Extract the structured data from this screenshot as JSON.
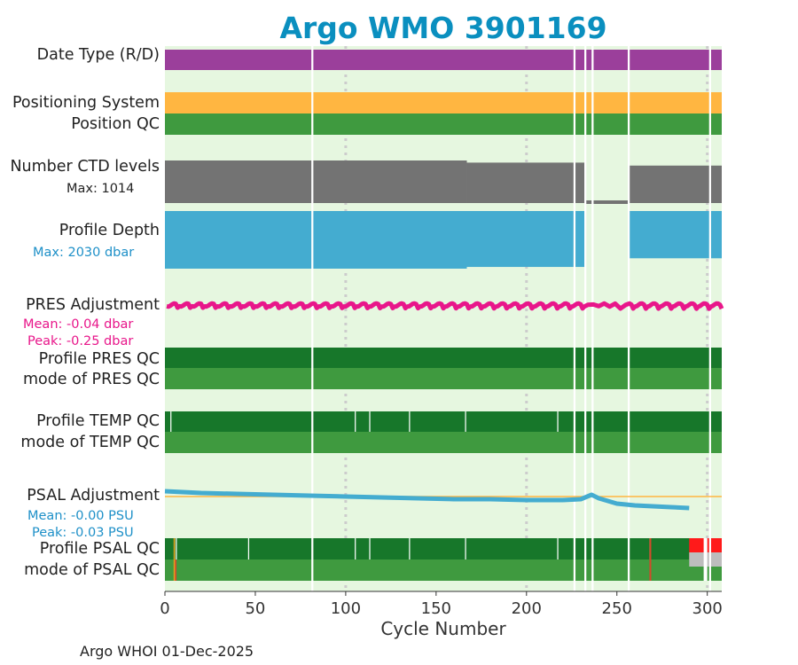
{
  "title": "Argo WMO 3901169",
  "footer": "Argo WHOI 01-Dec-2025",
  "rows": {
    "date_type": "Date Type (R/D)",
    "positioning_system": "Positioning System",
    "position_qc": "Position QC",
    "ctd_levels": "Number CTD levels",
    "ctd_max": "Max: 1014",
    "profile_depth": "Profile Depth",
    "depth_max": "Max: 2030 dbar",
    "pres_adjustment": "PRES Adjustment",
    "pres_mean": "Mean: -0.04 dbar",
    "pres_peak": "Peak: -0.25 dbar",
    "profile_pres_qc": "Profile PRES QC",
    "mode_pres_qc": "mode of PRES QC",
    "profile_temp_qc": "Profile TEMP QC",
    "mode_temp_qc": "mode of TEMP QC",
    "psal_adjustment": "PSAL Adjustment",
    "psal_mean": "Mean: -0.00 PSU",
    "psal_peak": "Peak: -0.03 PSU",
    "profile_psal_qc": "Profile PSAL QC",
    "mode_psal_qc": "mode of PSAL QC"
  },
  "colors": {
    "title": "#0a8fbf",
    "panel_bg": "#e6f7e0",
    "date_type": "#9b3f9b",
    "positioning": "#ffb641",
    "position_qc": "#3f9a3f",
    "ctd": "#737373",
    "depth": "#44acd0",
    "pres_adj": "#e8168a",
    "qc_dark": "#17772a",
    "qc_light": "#3f9a3f",
    "psal_adj": "#44acd0",
    "psal_zero_line": "#ffb641",
    "qc_bad": "#ff1a1a",
    "qc_missing": "#bdbdbd",
    "grid": "#cccccc",
    "gap": "#ffffff"
  },
  "chart_data": {
    "type": "timeline",
    "title": "Argo WMO 3901169",
    "xlabel": "Cycle Number",
    "xlim": [
      0,
      308
    ],
    "xticks": [
      0,
      50,
      100,
      150,
      200,
      250,
      300
    ],
    "grid_x": [
      100,
      200,
      300
    ],
    "missing_cycles": [
      81,
      226,
      232,
      236,
      256,
      301
    ],
    "temp_qc_flag_cycles": [
      3,
      105,
      113,
      135,
      166,
      217
    ],
    "psal_qc_flag_cycles": [
      6,
      46,
      105,
      113,
      135,
      166,
      217,
      268
    ],
    "psal_qc_bad_cycles": [
      290,
      308
    ],
    "position_gap_cycles": [
      232,
      256
    ],
    "ctd_levels": {
      "max": 1014,
      "segments": [
        {
          "cycles": [
            0,
            167
          ],
          "fraction": 1.0
        },
        {
          "cycles": [
            167,
            232
          ],
          "fraction": 0.95
        },
        {
          "cycles": [
            232,
            257
          ],
          "fraction": 0.06
        },
        {
          "cycles": [
            257,
            308
          ],
          "fraction": 0.88
        }
      ]
    },
    "profile_depth": {
      "max_dbar": 2030,
      "segments": [
        {
          "cycles": [
            0,
            167
          ],
          "fraction": 1.0
        },
        {
          "cycles": [
            167,
            232
          ],
          "fraction": 0.97
        },
        {
          "cycles": [
            232,
            257
          ],
          "fraction": 0.0
        },
        {
          "cycles": [
            257,
            308
          ],
          "fraction": 0.82
        }
      ]
    },
    "pres_adjustment": {
      "unit": "dbar",
      "mean": -0.04,
      "peak": -0.25
    },
    "psal_adjustment": {
      "unit": "PSU",
      "mean": -0.0,
      "peak": -0.03,
      "x": [
        0,
        20,
        40,
        60,
        80,
        100,
        120,
        140,
        160,
        180,
        200,
        220,
        230,
        236,
        240,
        250,
        260,
        270,
        280,
        290
      ],
      "y": [
        0.006,
        0.004,
        0.003,
        0.002,
        0.001,
        0.0,
        -0.001,
        -0.002,
        -0.003,
        -0.003,
        -0.004,
        -0.004,
        -0.003,
        0.002,
        -0.002,
        -0.008,
        -0.01,
        -0.011,
        -0.012,
        -0.013
      ]
    }
  }
}
